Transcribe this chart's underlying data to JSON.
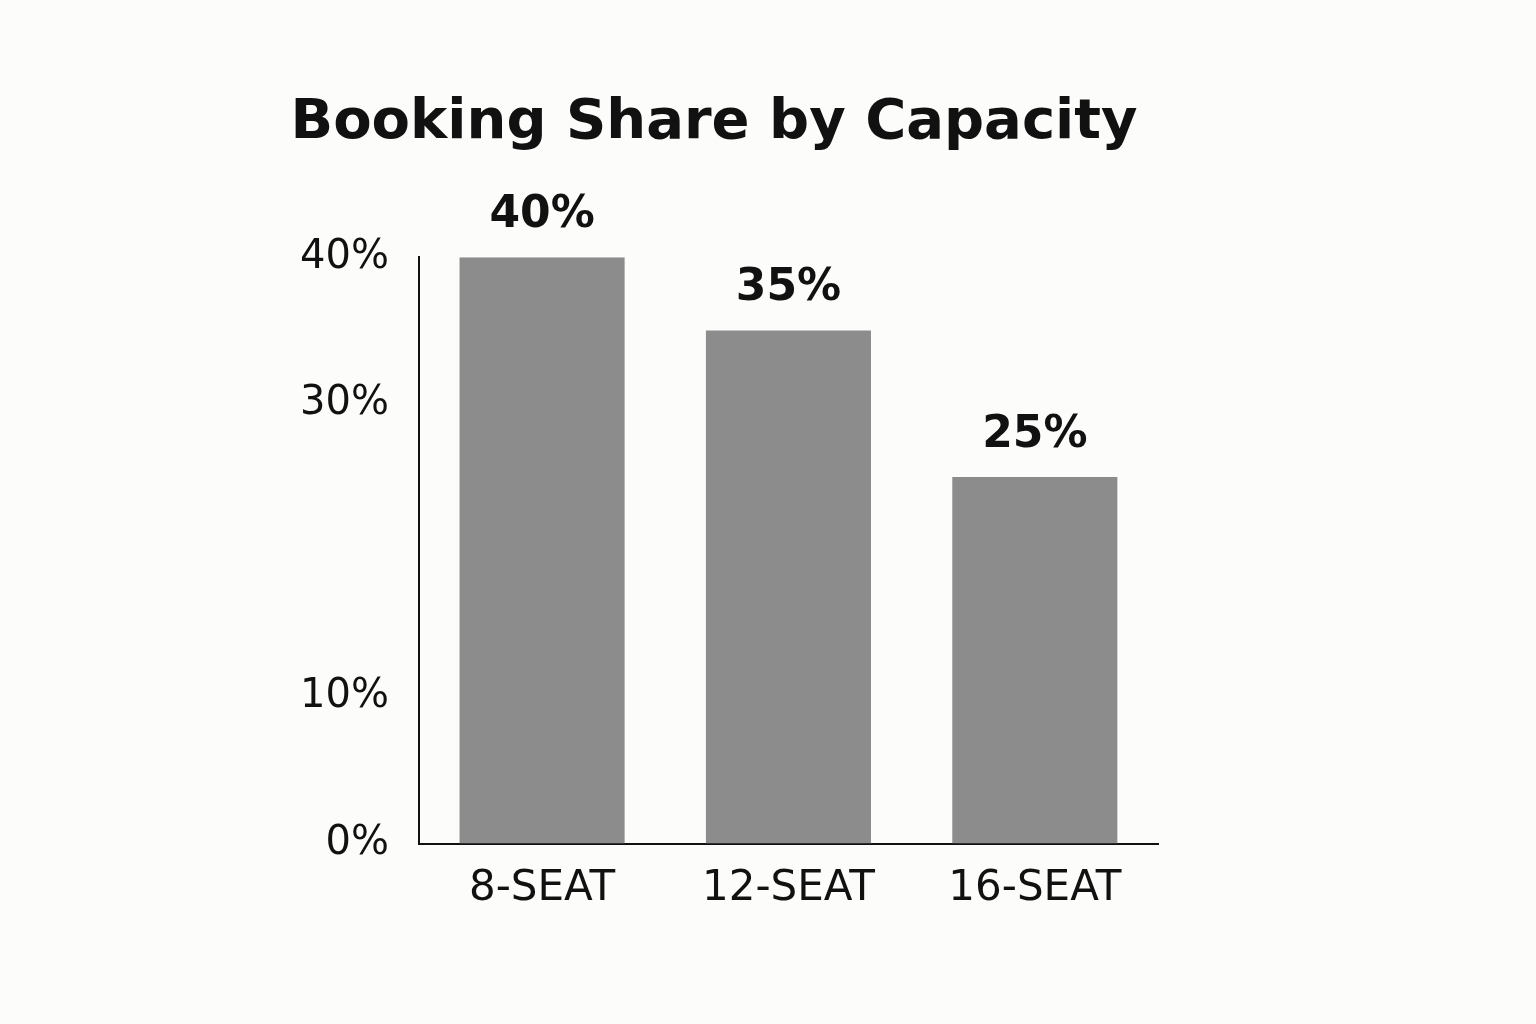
{
  "chart_data": {
    "type": "bar",
    "title": "Booking Share by Capacity",
    "categories": [
      "8-SEAT",
      "12-SEAT",
      "16-SEAT"
    ],
    "values": [
      40,
      35,
      25
    ],
    "color": "#8c8c8c",
    "ylim": [
      0,
      40
    ],
    "yticks": [
      {
        "value": 0,
        "label": "0%"
      },
      {
        "value": 10,
        "label": "10%"
      },
      {
        "value": 30,
        "label": "30%"
      },
      {
        "value": 40,
        "label": "40%"
      }
    ],
    "grid": false,
    "legend": false,
    "value_labels": [
      "40%",
      "35%",
      "25%"
    ]
  }
}
